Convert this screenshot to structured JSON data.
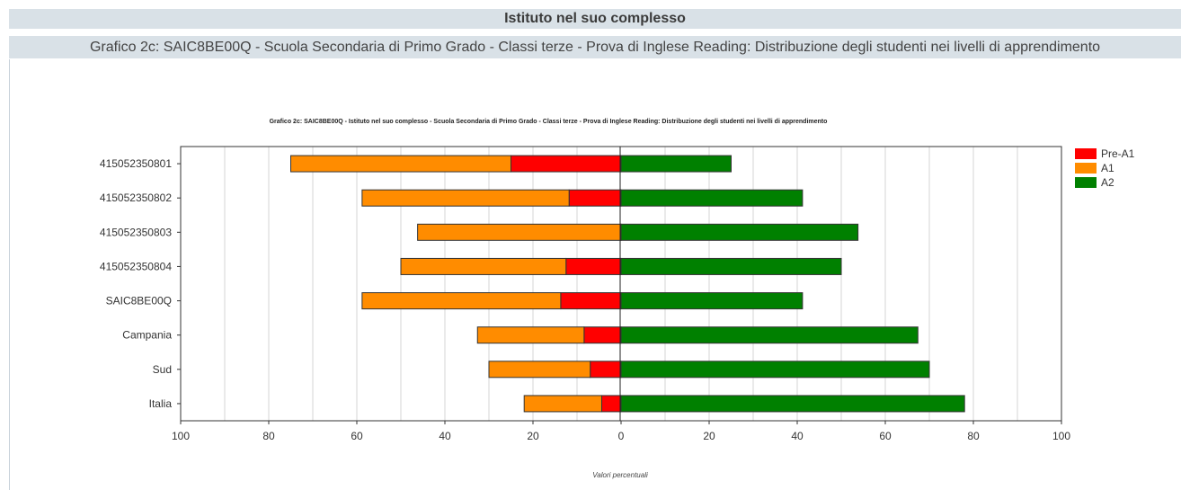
{
  "header": {
    "title": "Istituto nel suo complesso",
    "subtitle": "Grafico 2c: SAIC8BE00Q - Scuola Secondaria di Primo Grado - Classi terze - Prova di Inglese Reading: Distribuzione degli studenti nei livelli di apprendimento"
  },
  "chart_data": {
    "type": "bar",
    "orientation": "horizontal-diverging",
    "title": "Grafico 2c: SAIC8BE00Q - Istituto nel suo complesso - Scuola Secondaria di Primo Grado - Classi terze - Prova di Inglese Reading: Distribuzione degli studenti nei livelli di apprendimento",
    "xlabel": "Valori percentuali",
    "ylabel": "",
    "xlim": [
      -100,
      100
    ],
    "xticks": [
      -100,
      -80,
      -60,
      -40,
      -20,
      0,
      20,
      40,
      60,
      80,
      100
    ],
    "xtick_labels": [
      "100",
      "80",
      "60",
      "40",
      "20",
      "0",
      "20",
      "40",
      "60",
      "80",
      "100"
    ],
    "grid": true,
    "legend_position": "top-right",
    "categories": [
      "415052350801",
      "415052350802",
      "415052350803",
      "415052350804",
      "SAIC8BE00Q",
      "Campania",
      "Sud",
      "Italia"
    ],
    "series": [
      {
        "name": "Pre-A1",
        "side": "negative",
        "color": "#ff0000",
        "values": [
          25.0,
          11.8,
          0.0,
          12.5,
          13.7,
          8.4,
          7.0,
          4.4
        ]
      },
      {
        "name": "A1",
        "side": "negative",
        "color": "#ff8c00",
        "values": [
          50.0,
          47.0,
          46.2,
          37.5,
          45.1,
          24.2,
          23.0,
          17.6
        ]
      },
      {
        "name": "A2",
        "side": "positive",
        "color": "#008000",
        "values": [
          25.0,
          41.2,
          53.8,
          50.0,
          41.2,
          67.4,
          70.0,
          78.0
        ]
      }
    ]
  }
}
